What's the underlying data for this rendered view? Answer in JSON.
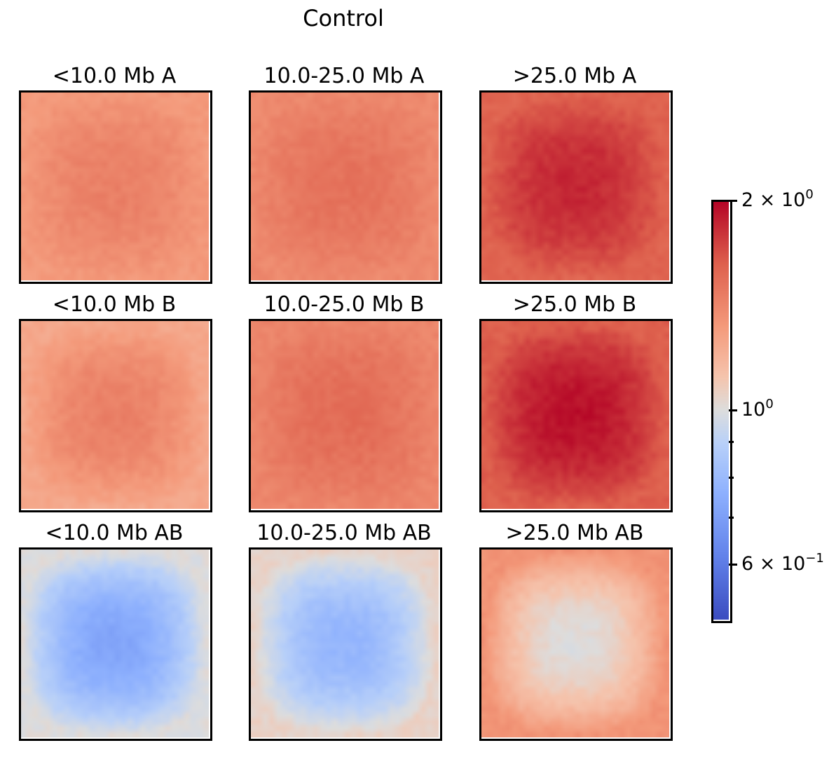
{
  "title": "Control",
  "chart_data": {
    "type": "heatmap",
    "title": "Control",
    "scale": "log",
    "colormap": "coolwarm",
    "vmin": 0.5,
    "vmax": 2.0,
    "panels": [
      {
        "title": "<10.0 Mb A",
        "center_value": 1.45,
        "edge_value": 1.32
      },
      {
        "title": "10.0-25.0 Mb A",
        "center_value": 1.52,
        "edge_value": 1.4
      },
      {
        "title": ">25.0 Mb A",
        "center_value": 1.85,
        "edge_value": 1.6
      },
      {
        "title": "<10.0 Mb B",
        "center_value": 1.45,
        "edge_value": 1.25
      },
      {
        "title": "10.0-25.0 Mb B",
        "center_value": 1.55,
        "edge_value": 1.42
      },
      {
        "title": ">25.0 Mb B",
        "center_value": 1.95,
        "edge_value": 1.62
      },
      {
        "title": "<10.0 Mb AB",
        "center_value": 0.72,
        "edge_value": 1.0
      },
      {
        "title": "10.0-25.0 Mb AB",
        "center_value": 0.78,
        "edge_value": 1.05
      },
      {
        "title": ">25.0 Mb AB",
        "center_value": 1.0,
        "edge_value": 1.35
      }
    ],
    "colorbar": {
      "major_ticks": [
        {
          "value": 2.0,
          "mantissa": "2 × 10",
          "exponent": "0"
        },
        {
          "value": 1.0,
          "mantissa": "10",
          "exponent": "0"
        },
        {
          "value": 0.6,
          "mantissa": "6 × 10",
          "exponent": "−1"
        }
      ],
      "minor_ticks": [
        0.9,
        0.8,
        0.7
      ]
    }
  }
}
